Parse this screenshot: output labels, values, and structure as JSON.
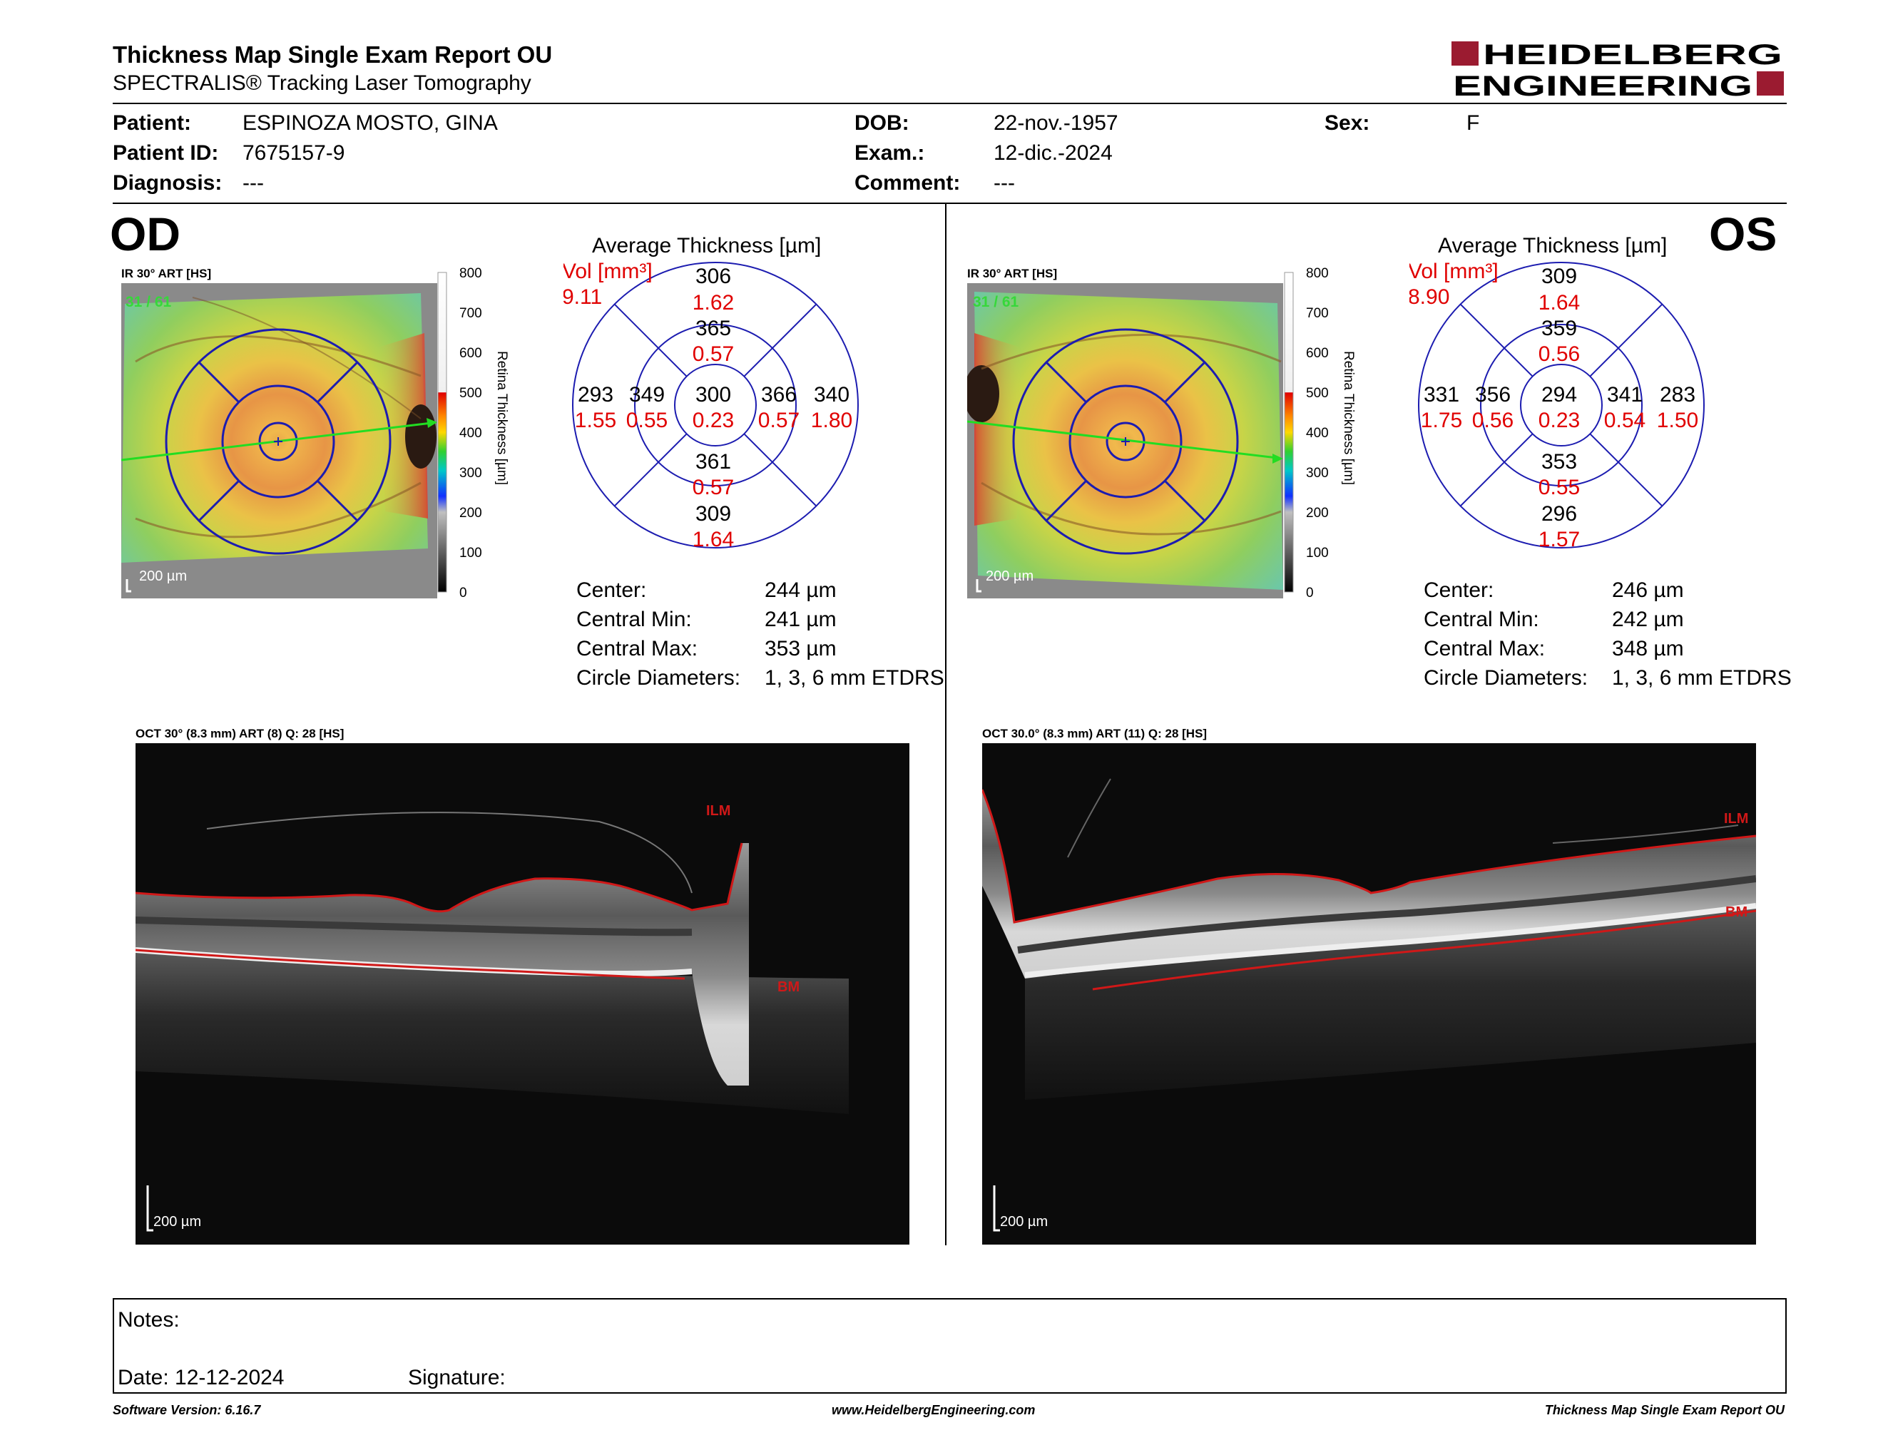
{
  "header": {
    "title": "Thickness Map Single Exam Report OU",
    "subtitle": "SPECTRALIS® Tracking Laser Tomography",
    "logo_line1": "HEIDELBERG",
    "logo_line2": "ENGINEERING",
    "logo_color": "#9b1b30"
  },
  "patient": {
    "name_label": "Patient:",
    "name": "ESPINOZA MOSTO, GINA",
    "id_label": "Patient ID:",
    "id": "7675157-9",
    "diagnosis_label": "Diagnosis:",
    "diagnosis": "---",
    "dob_label": "DOB:",
    "dob": "22-nov.-1957",
    "exam_label": "Exam.:",
    "exam": "12-dic.-2024",
    "comment_label": "Comment:",
    "comment": "---",
    "sex_label": "Sex:",
    "sex": "F"
  },
  "common": {
    "avg_title": "Average Thickness [µm]",
    "vol_label": "Vol [mm³]",
    "scale_label": "Retina Thickness [µm]",
    "scale_ticks": [
      "800",
      "700",
      "600",
      "500",
      "400",
      "300",
      "200",
      "100",
      "0"
    ],
    "scale_bar": "200 µm",
    "ilm": "ILM",
    "bm": "BM",
    "center_label": "Center:",
    "cmin_label": "Central Min:",
    "cmax_label": "Central Max:",
    "circ_label": "Circle Diameters:",
    "circ_value": "1, 3, 6 mm ETDRS"
  },
  "od": {
    "eye": "OD",
    "ir_caption": "IR 30° ART [HS]",
    "frame_count": "31 / 61",
    "oct_caption": "OCT 30° (8.3 mm) ART (8) Q: 28 [HS]",
    "vol_total": "9.11",
    "center": {
      "t": "300",
      "v": "0.23"
    },
    "inner_sup": {
      "t": "365",
      "v": "0.57"
    },
    "inner_inf": {
      "t": "361",
      "v": "0.57"
    },
    "inner_left": {
      "t": "349",
      "v": "0.55"
    },
    "inner_right": {
      "t": "366",
      "v": "0.57"
    },
    "outer_sup": {
      "t": "306",
      "v": "1.62"
    },
    "outer_inf": {
      "t": "309",
      "v": "1.64"
    },
    "outer_left": {
      "t": "293",
      "v": "1.55"
    },
    "outer_right": {
      "t": "340",
      "v": "1.80"
    },
    "stat_center": "244 µm",
    "stat_min": "241 µm",
    "stat_max": "353 µm"
  },
  "os": {
    "eye": "OS",
    "ir_caption": "IR 30° ART [HS]",
    "frame_count": "31 / 61",
    "oct_caption": "OCT 30.0° (8.3 mm) ART (11) Q: 28 [HS]",
    "vol_total": "8.90",
    "center": {
      "t": "294",
      "v": "0.23"
    },
    "inner_sup": {
      "t": "359",
      "v": "0.56"
    },
    "inner_inf": {
      "t": "353",
      "v": "0.55"
    },
    "inner_left": {
      "t": "356",
      "v": "0.56"
    },
    "inner_right": {
      "t": "341",
      "v": "0.54"
    },
    "outer_sup": {
      "t": "309",
      "v": "1.64"
    },
    "outer_inf": {
      "t": "296",
      "v": "1.57"
    },
    "outer_left": {
      "t": "331",
      "v": "1.75"
    },
    "outer_right": {
      "t": "283",
      "v": "1.50"
    },
    "stat_center": "246 µm",
    "stat_min": "242 µm",
    "stat_max": "348 µm"
  },
  "notes": {
    "notes_label": "Notes:",
    "date_label": "Date: 12-12-2024",
    "signature_label": "Signature:"
  },
  "footer": {
    "software": "Software Version: 6.16.7",
    "url": "www.HeidelbergEngineering.com",
    "report": "Thickness Map Single Exam Report OU"
  }
}
